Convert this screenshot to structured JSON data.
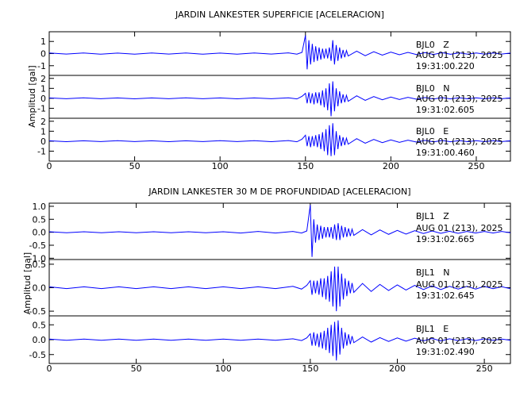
{
  "chart_data": [
    {
      "type": "seismogram",
      "title": "JARDIN LANKESTER SUPERFICIE [ACELERACION]",
      "ylabel": "Amplitud [gal]",
      "xlim": [
        0,
        270
      ],
      "xticks": [
        0,
        50,
        100,
        150,
        200,
        250
      ],
      "x": [
        0,
        10,
        20,
        30,
        40,
        50,
        60,
        70,
        80,
        90,
        100,
        110,
        120,
        130,
        140,
        145,
        148,
        150,
        151,
        152,
        153,
        154,
        155,
        156,
        157,
        158,
        159,
        160,
        161,
        162,
        163,
        164,
        165,
        166,
        167,
        168,
        169,
        170,
        171,
        172,
        173,
        174,
        175,
        180,
        185,
        190,
        195,
        200,
        205,
        210,
        215,
        220,
        225,
        230,
        235,
        240,
        245,
        250,
        255,
        260,
        265,
        270
      ],
      "panels": [
        {
          "label": "BJL0   Z",
          "date": "AUG 01 (213), 2025",
          "time": "19:31:00.220",
          "color": "#0000ff",
          "ylim": [
            -1.8,
            1.8
          ],
          "yticks": [
            -1,
            0,
            1
          ],
          "values": [
            0.05,
            -0.04,
            0.05,
            -0.05,
            0.04,
            -0.05,
            0.05,
            -0.04,
            0.05,
            -0.05,
            0.04,
            -0.05,
            0.05,
            -0.04,
            0.06,
            -0.05,
            0.1,
            1.5,
            -1.3,
            1.1,
            -0.9,
            0.8,
            -0.7,
            0.6,
            -0.6,
            0.5,
            -0.5,
            0.4,
            -0.4,
            0.4,
            -0.4,
            0.5,
            -0.6,
            1.1,
            -0.9,
            0.7,
            -0.6,
            0.5,
            -0.4,
            0.3,
            -0.3,
            0.25,
            -0.2,
            0.2,
            -0.18,
            0.15,
            -0.13,
            0.12,
            -0.1,
            0.1,
            -0.08,
            0.08,
            -0.07,
            0.07,
            -0.06,
            0.06,
            -0.05,
            0.05,
            -0.05,
            0.05,
            -0.04,
            0.04
          ]
        },
        {
          "label": "BJL0   N",
          "date": "AUG 01 (213), 2025",
          "time": "19:31:02.605",
          "color": "#0000ff",
          "ylim": [
            -2,
            2.3
          ],
          "yticks": [
            -1,
            0,
            1,
            2
          ],
          "values": [
            0.04,
            -0.04,
            0.05,
            -0.04,
            0.04,
            -0.05,
            0.04,
            -0.04,
            0.05,
            -0.04,
            0.04,
            -0.05,
            0.04,
            -0.04,
            0.05,
            -0.06,
            0.2,
            0.5,
            -0.5,
            0.6,
            -0.5,
            0.5,
            -0.6,
            0.6,
            -0.5,
            0.6,
            -0.7,
            0.8,
            -0.9,
            1.0,
            -1.2,
            1.5,
            -1.8,
            1.7,
            -1.3,
            1.0,
            -0.8,
            0.7,
            -0.5,
            0.4,
            -0.4,
            0.3,
            -0.3,
            0.25,
            -0.2,
            0.18,
            -0.15,
            0.13,
            -0.12,
            0.1,
            -0.09,
            0.08,
            -0.07,
            0.07,
            -0.06,
            0.06,
            -0.05,
            0.05,
            -0.05,
            0.05,
            -0.04,
            0.04
          ]
        },
        {
          "label": "BJL0   E",
          "date": "AUG 01 (213), 2025",
          "time": "19:31:00.460",
          "color": "#0000ff",
          "ylim": [
            -2,
            2.3
          ],
          "yticks": [
            -1,
            0,
            1,
            2
          ],
          "values": [
            0.04,
            -0.05,
            0.04,
            -0.04,
            0.05,
            -0.04,
            0.04,
            -0.05,
            0.04,
            -0.04,
            0.05,
            -0.04,
            0.05,
            -0.05,
            0.06,
            -0.06,
            0.2,
            0.6,
            -0.5,
            0.5,
            -0.6,
            0.5,
            -0.5,
            0.6,
            -0.6,
            0.7,
            -0.8,
            0.9,
            -1.0,
            1.2,
            -1.4,
            1.6,
            -1.5,
            1.8,
            -1.4,
            1.0,
            -0.8,
            0.6,
            -0.5,
            0.4,
            -0.4,
            0.3,
            -0.3,
            0.25,
            -0.2,
            0.18,
            -0.15,
            0.13,
            -0.12,
            0.1,
            -0.09,
            0.08,
            -0.07,
            0.07,
            -0.06,
            0.06,
            -0.05,
            0.05,
            -0.05,
            0.05,
            -0.04,
            0.04
          ]
        }
      ]
    },
    {
      "type": "seismogram",
      "title": "JARDIN LANKESTER 30 M DE PROFUNDIDAD [ACELERACION]",
      "ylabel": "Amplitud [gal]",
      "xlim": [
        0,
        265
      ],
      "xticks": [
        0,
        50,
        100,
        150,
        200,
        250
      ],
      "x": [
        0,
        10,
        20,
        30,
        40,
        50,
        60,
        70,
        80,
        90,
        100,
        110,
        120,
        130,
        140,
        145,
        148,
        150,
        151,
        152,
        153,
        154,
        155,
        156,
        157,
        158,
        159,
        160,
        161,
        162,
        163,
        164,
        165,
        166,
        167,
        168,
        169,
        170,
        171,
        172,
        173,
        174,
        175,
        180,
        185,
        190,
        195,
        200,
        205,
        210,
        215,
        220,
        225,
        230,
        235,
        240,
        245,
        250,
        255,
        260,
        265
      ],
      "panels": [
        {
          "label": "BJL1   Z",
          "date": "AUG 01 (213), 2025",
          "time": "19:31:02.665",
          "color": "#0000ff",
          "ylim": [
            -1.05,
            1.12
          ],
          "yticks": [
            {
              "value": -1,
              "label": "-1.0"
            },
            {
              "value": -0.5,
              "label": "-0.5"
            },
            {
              "value": 0,
              "label": "0.0"
            },
            {
              "value": 0.5,
              "label": "0.5"
            },
            {
              "value": 1,
              "label": "1.0"
            }
          ],
          "values": [
            0.02,
            -0.02,
            0.02,
            -0.02,
            0.02,
            -0.02,
            0.02,
            -0.02,
            0.02,
            -0.02,
            0.02,
            -0.03,
            0.03,
            -0.03,
            0.03,
            -0.03,
            0.05,
            1.05,
            -0.95,
            0.5,
            -0.4,
            0.3,
            -0.3,
            0.25,
            -0.25,
            0.2,
            -0.2,
            0.2,
            -0.2,
            0.2,
            -0.25,
            0.3,
            -0.3,
            0.35,
            -0.3,
            0.25,
            -0.2,
            0.2,
            -0.18,
            0.15,
            -0.15,
            0.12,
            -0.12,
            0.1,
            -0.1,
            0.09,
            -0.08,
            0.07,
            -0.07,
            0.06,
            -0.05,
            0.05,
            -0.04,
            0.04,
            -0.04,
            0.03,
            -0.03,
            0.03,
            -0.03,
            0.03,
            -0.02
          ]
        },
        {
          "label": "BJL1   N",
          "date": "AUG 01 (213), 2025",
          "time": "19:31:02.645",
          "color": "#0000ff",
          "ylim": [
            -0.6,
            0.6
          ],
          "yticks": [
            {
              "value": -0.5,
              "label": "-0.5"
            },
            {
              "value": 0,
              "label": "0.0"
            },
            {
              "value": 0.5,
              "label": "0.5"
            }
          ],
          "values": [
            0.02,
            -0.02,
            0.02,
            -0.02,
            0.02,
            -0.02,
            0.02,
            -0.02,
            0.02,
            -0.02,
            0.02,
            -0.02,
            0.02,
            -0.02,
            0.03,
            -0.03,
            0.05,
            0.15,
            -0.15,
            0.15,
            -0.12,
            0.15,
            -0.15,
            0.2,
            -0.2,
            0.2,
            -0.25,
            0.25,
            -0.3,
            0.35,
            -0.4,
            0.45,
            -0.5,
            0.45,
            -0.4,
            0.3,
            -0.25,
            0.2,
            -0.18,
            0.15,
            -0.12,
            0.1,
            -0.1,
            0.09,
            -0.08,
            0.07,
            -0.06,
            0.06,
            -0.05,
            0.05,
            -0.04,
            0.04,
            -0.04,
            0.03,
            -0.03,
            0.03,
            -0.03,
            0.03,
            -0.02,
            0.02,
            -0.02
          ]
        },
        {
          "label": "BJL1   E",
          "date": "AUG 01 (213), 2025",
          "time": "19:31:02.490",
          "color": "#0000ff",
          "ylim": [
            -0.8,
            0.8
          ],
          "yticks": [
            {
              "value": -0.5,
              "label": "-0.5"
            },
            {
              "value": 0,
              "label": "0.0"
            },
            {
              "value": 0.5,
              "label": "0.5"
            }
          ],
          "values": [
            0.02,
            -0.02,
            0.02,
            -0.02,
            0.02,
            -0.02,
            0.02,
            -0.02,
            0.02,
            -0.02,
            0.02,
            -0.02,
            0.02,
            -0.02,
            0.03,
            -0.03,
            0.06,
            0.2,
            -0.2,
            0.25,
            -0.2,
            0.2,
            -0.25,
            0.25,
            -0.3,
            0.3,
            -0.35,
            0.4,
            -0.45,
            0.5,
            -0.55,
            0.6,
            -0.7,
            0.65,
            -0.5,
            0.4,
            -0.3,
            0.25,
            -0.2,
            0.18,
            -0.15,
            0.12,
            -0.1,
            0.09,
            -0.08,
            0.07,
            -0.06,
            0.06,
            -0.05,
            0.05,
            -0.04,
            0.04,
            -0.04,
            0.03,
            -0.03,
            0.03,
            -0.03,
            0.03,
            -0.02,
            0.02,
            -0.02
          ]
        }
      ]
    }
  ]
}
